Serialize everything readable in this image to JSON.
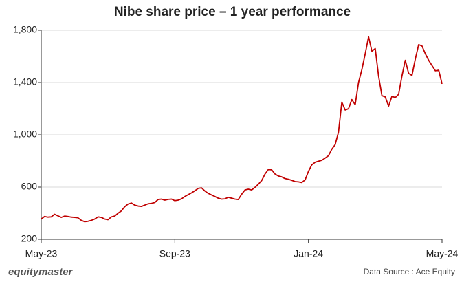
{
  "chart_data": {
    "type": "line",
    "title": "Nibe share price – 1 year performance",
    "categories": [
      "May-23",
      null,
      null,
      null,
      null,
      null,
      null,
      null,
      null,
      null,
      null,
      null,
      null,
      null,
      null,
      null,
      null,
      null,
      null,
      null,
      null,
      null,
      null,
      null,
      null,
      null,
      null,
      null,
      null,
      null,
      null,
      null,
      null,
      null,
      null,
      null,
      null,
      null,
      null,
      null,
      "Sep-23",
      null,
      null,
      null,
      null,
      null,
      null,
      null,
      null,
      null,
      null,
      null,
      null,
      null,
      null,
      null,
      null,
      null,
      null,
      null,
      null,
      null,
      null,
      null,
      null,
      null,
      null,
      null,
      null,
      null,
      null,
      null,
      null,
      null,
      null,
      null,
      null,
      null,
      null,
      null,
      "Jan-24",
      null,
      null,
      null,
      null,
      null,
      null,
      null,
      null,
      null,
      null,
      null,
      null,
      null,
      null,
      null,
      null,
      null,
      null,
      null,
      null,
      null,
      null,
      null,
      null,
      null,
      null,
      null,
      null,
      null,
      null,
      null,
      null,
      null,
      null,
      null,
      null,
      null,
      null,
      null,
      "May-24"
    ],
    "values": [
      355,
      375,
      370,
      372,
      392,
      380,
      368,
      378,
      375,
      370,
      368,
      365,
      345,
      335,
      338,
      345,
      355,
      372,
      368,
      355,
      350,
      372,
      378,
      400,
      418,
      450,
      470,
      478,
      462,
      455,
      452,
      462,
      472,
      475,
      482,
      505,
      508,
      500,
      506,
      508,
      496,
      500,
      510,
      528,
      542,
      556,
      572,
      590,
      594,
      570,
      552,
      540,
      528,
      515,
      508,
      510,
      522,
      515,
      508,
      505,
      545,
      578,
      584,
      578,
      598,
      622,
      650,
      700,
      735,
      732,
      700,
      685,
      678,
      665,
      660,
      652,
      642,
      640,
      635,
      655,
      720,
      770,
      790,
      798,
      805,
      822,
      840,
      890,
      925,
      1020,
      1250,
      1190,
      1200,
      1270,
      1230,
      1400,
      1500,
      1620,
      1750,
      1640,
      1660,
      1450,
      1300,
      1290,
      1220,
      1295,
      1285,
      1310,
      1450,
      1570,
      1470,
      1455,
      1580,
      1690,
      1680,
      1620,
      1570,
      1530,
      1490,
      1495,
      1390
    ],
    "color": "#c00000",
    "ylim": [
      200,
      1800
    ],
    "yticks": [
      200,
      600,
      {
        "value": 1000,
        "label": "1,000"
      },
      {
        "value": 1400,
        "label": "1,400"
      },
      {
        "value": 1800,
        "label": "1,800"
      }
    ],
    "grid": true,
    "brand": "equitymaster",
    "source": "Data Source : Ace Equity"
  }
}
